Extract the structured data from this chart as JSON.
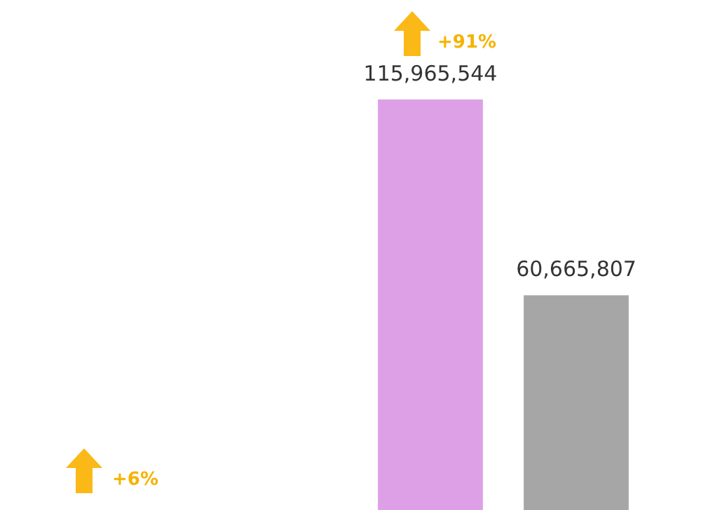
{
  "chart_data": {
    "type": "bar",
    "categories": [
      null,
      null
    ],
    "values": [
      115965544,
      60665807
    ],
    "colors": [
      "#dda0e6",
      "#a6a6a6"
    ],
    "value_labels": [
      "115,965,544",
      "60,665,807"
    ],
    "annotations": [
      "+91%",
      "+6%"
    ]
  }
}
